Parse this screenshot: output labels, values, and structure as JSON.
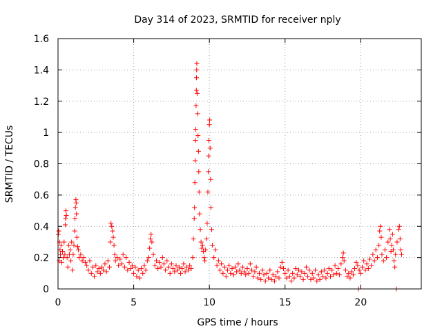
{
  "chart_data": {
    "type": "scatter",
    "title": "Day 314 of 2023, SRMTID for receiver nply",
    "xlabel": "GPS time / hours",
    "ylabel": "SRMTID / TECUs",
    "xlim": [
      0,
      24
    ],
    "ylim": [
      0,
      1.6
    ],
    "x_ticks": [
      0,
      5,
      10,
      15,
      20
    ],
    "x_tick_labels": [
      "0",
      "5",
      "10",
      "15",
      "20"
    ],
    "y_ticks": [
      0,
      0.2,
      0.4,
      0.6,
      0.8,
      1,
      1.2,
      1.4,
      1.6
    ],
    "y_tick_labels": [
      "0",
      "0.2",
      "0.4",
      "0.6",
      "0.8",
      "1",
      "1.2",
      "1.4",
      "1.6"
    ],
    "grid": true,
    "marker": "+",
    "colors": {
      "series": "#ff0000",
      "grid": "#a0a0a0",
      "axis": "#000000"
    },
    "series": [
      {
        "name": "SRMTID",
        "marker": "+",
        "points": [
          [
            0.02,
            0.35
          ],
          [
            0.05,
            0.37
          ],
          [
            0.08,
            0.18
          ],
          [
            0.1,
            0.3
          ],
          [
            0.13,
            0.25
          ],
          [
            0.16,
            0.22
          ],
          [
            0.2,
            0.28
          ],
          [
            0.25,
            0.17
          ],
          [
            0.3,
            0.24
          ],
          [
            0.35,
            0.2
          ],
          [
            0.4,
            0.3
          ],
          [
            0.45,
            0.22
          ],
          [
            0.48,
            0.41
          ],
          [
            0.5,
            0.45
          ],
          [
            0.52,
            0.5
          ],
          [
            0.55,
            0.47
          ],
          [
            0.6,
            0.2
          ],
          [
            0.65,
            0.14
          ],
          [
            0.7,
            0.28
          ],
          [
            0.75,
            0.22
          ],
          [
            0.8,
            0.25
          ],
          [
            0.85,
            0.18
          ],
          [
            0.9,
            0.3
          ],
          [
            0.95,
            0.12
          ],
          [
            1.0,
            0.22
          ],
          [
            1.05,
            0.28
          ],
          [
            1.1,
            0.37
          ],
          [
            1.12,
            0.45
          ],
          [
            1.15,
            0.52
          ],
          [
            1.18,
            0.57
          ],
          [
            1.2,
            0.55
          ],
          [
            1.22,
            0.48
          ],
          [
            1.25,
            0.33
          ],
          [
            1.3,
            0.27
          ],
          [
            1.35,
            0.25
          ],
          [
            1.4,
            0.2
          ],
          [
            1.5,
            0.22
          ],
          [
            1.6,
            0.18
          ],
          [
            1.7,
            0.2
          ],
          [
            1.8,
            0.17
          ],
          [
            1.9,
            0.15
          ],
          [
            2.0,
            0.12
          ],
          [
            2.1,
            0.18
          ],
          [
            2.2,
            0.1
          ],
          [
            2.3,
            0.14
          ],
          [
            2.4,
            0.08
          ],
          [
            2.5,
            0.15
          ],
          [
            2.6,
            0.11
          ],
          [
            2.7,
            0.13
          ],
          [
            2.8,
            0.1
          ],
          [
            2.9,
            0.14
          ],
          [
            3.0,
            0.12
          ],
          [
            3.1,
            0.16
          ],
          [
            3.2,
            0.11
          ],
          [
            3.3,
            0.18
          ],
          [
            3.4,
            0.14
          ],
          [
            3.45,
            0.3
          ],
          [
            3.5,
            0.42
          ],
          [
            3.55,
            0.4
          ],
          [
            3.6,
            0.37
          ],
          [
            3.65,
            0.33
          ],
          [
            3.7,
            0.28
          ],
          [
            3.75,
            0.22
          ],
          [
            3.8,
            0.18
          ],
          [
            3.9,
            0.2
          ],
          [
            4.0,
            0.15
          ],
          [
            4.1,
            0.19
          ],
          [
            4.2,
            0.16
          ],
          [
            4.3,
            0.22
          ],
          [
            4.4,
            0.14
          ],
          [
            4.5,
            0.2
          ],
          [
            4.6,
            0.12
          ],
          [
            4.7,
            0.17
          ],
          [
            4.8,
            0.13
          ],
          [
            4.9,
            0.15
          ],
          [
            5.0,
            0.1
          ],
          [
            5.1,
            0.14
          ],
          [
            5.2,
            0.08
          ],
          [
            5.3,
            0.12
          ],
          [
            5.4,
            0.07
          ],
          [
            5.5,
            0.13
          ],
          [
            5.6,
            0.1
          ],
          [
            5.7,
            0.15
          ],
          [
            5.8,
            0.12
          ],
          [
            5.9,
            0.18
          ],
          [
            6.0,
            0.2
          ],
          [
            6.05,
            0.26
          ],
          [
            6.1,
            0.32
          ],
          [
            6.15,
            0.35
          ],
          [
            6.2,
            0.3
          ],
          [
            6.3,
            0.22
          ],
          [
            6.4,
            0.15
          ],
          [
            6.5,
            0.18
          ],
          [
            6.6,
            0.13
          ],
          [
            6.7,
            0.17
          ],
          [
            6.8,
            0.14
          ],
          [
            6.9,
            0.2
          ],
          [
            7.0,
            0.16
          ],
          [
            7.1,
            0.12
          ],
          [
            7.2,
            0.18
          ],
          [
            7.3,
            0.14
          ],
          [
            7.4,
            0.1
          ],
          [
            7.5,
            0.16
          ],
          [
            7.6,
            0.13
          ],
          [
            7.7,
            0.11
          ],
          [
            7.8,
            0.15
          ],
          [
            7.9,
            0.12
          ],
          [
            8.0,
            0.14
          ],
          [
            8.1,
            0.1
          ],
          [
            8.2,
            0.13
          ],
          [
            8.3,
            0.16
          ],
          [
            8.4,
            0.11
          ],
          [
            8.5,
            0.14
          ],
          [
            8.6,
            0.12
          ],
          [
            8.7,
            0.15
          ],
          [
            8.8,
            0.13
          ],
          [
            8.9,
            0.2
          ],
          [
            8.95,
            0.32
          ],
          [
            9.0,
            0.45
          ],
          [
            9.02,
            0.52
          ],
          [
            9.04,
            0.68
          ],
          [
            9.06,
            0.82
          ],
          [
            9.08,
            0.95
          ],
          [
            9.1,
            1.02
          ],
          [
            9.12,
            1.17
          ],
          [
            9.14,
            1.27
          ],
          [
            9.15,
            1.35
          ],
          [
            9.16,
            1.4
          ],
          [
            9.17,
            1.44
          ],
          [
            9.2,
            1.25
          ],
          [
            9.22,
            1.12
          ],
          [
            9.25,
            0.98
          ],
          [
            9.28,
            0.88
          ],
          [
            9.3,
            0.75
          ],
          [
            9.32,
            0.62
          ],
          [
            9.35,
            0.48
          ],
          [
            9.4,
            0.38
          ],
          [
            9.45,
            0.3
          ],
          [
            9.5,
            0.26
          ],
          [
            9.55,
            0.28
          ],
          [
            9.6,
            0.24
          ],
          [
            9.65,
            0.2
          ],
          [
            9.7,
            0.18
          ],
          [
            9.75,
            0.25
          ],
          [
            9.8,
            0.32
          ],
          [
            9.85,
            0.42
          ],
          [
            9.9,
            0.62
          ],
          [
            9.93,
            0.75
          ],
          [
            9.95,
            0.85
          ],
          [
            9.97,
            0.95
          ],
          [
            10.0,
            1.05
          ],
          [
            10.02,
            1.08
          ],
          [
            10.05,
            0.9
          ],
          [
            10.08,
            0.7
          ],
          [
            10.1,
            0.52
          ],
          [
            10.15,
            0.38
          ],
          [
            10.2,
            0.28
          ],
          [
            10.3,
            0.2
          ],
          [
            10.4,
            0.25
          ],
          [
            10.5,
            0.15
          ],
          [
            10.6,
            0.18
          ],
          [
            10.7,
            0.12
          ],
          [
            10.8,
            0.16
          ],
          [
            10.9,
            0.1
          ],
          [
            11.0,
            0.14
          ],
          [
            11.1,
            0.08
          ],
          [
            11.2,
            0.12
          ],
          [
            11.3,
            0.15
          ],
          [
            11.4,
            0.1
          ],
          [
            11.5,
            0.13
          ],
          [
            11.6,
            0.09
          ],
          [
            11.7,
            0.14
          ],
          [
            11.8,
            0.11
          ],
          [
            11.9,
            0.16
          ],
          [
            12.0,
            0.12
          ],
          [
            12.1,
            0.1
          ],
          [
            12.2,
            0.14
          ],
          [
            12.3,
            0.11
          ],
          [
            12.4,
            0.09
          ],
          [
            12.5,
            0.13
          ],
          [
            12.6,
            0.1
          ],
          [
            12.7,
            0.16
          ],
          [
            12.8,
            0.12
          ],
          [
            12.9,
            0.08
          ],
          [
            13.0,
            0.11
          ],
          [
            13.1,
            0.14
          ],
          [
            13.2,
            0.07
          ],
          [
            13.3,
            0.1
          ],
          [
            13.4,
            0.06
          ],
          [
            13.5,
            0.12
          ],
          [
            13.6,
            0.09
          ],
          [
            13.7,
            0.05
          ],
          [
            13.8,
            0.1
          ],
          [
            13.9,
            0.07
          ],
          [
            14.0,
            0.12
          ],
          [
            14.1,
            0.06
          ],
          [
            14.2,
            0.09
          ],
          [
            14.3,
            0.05
          ],
          [
            14.4,
            0.08
          ],
          [
            14.5,
            0.11
          ],
          [
            14.6,
            0.07
          ],
          [
            14.7,
            0.14
          ],
          [
            14.8,
            0.17
          ],
          [
            14.9,
            0.13
          ],
          [
            15.0,
            0.1
          ],
          [
            15.1,
            0.07
          ],
          [
            15.2,
            0.12
          ],
          [
            15.3,
            0.08
          ],
          [
            15.4,
            0.05
          ],
          [
            15.5,
            0.1
          ],
          [
            15.6,
            0.07
          ],
          [
            15.7,
            0.13
          ],
          [
            15.8,
            0.09
          ],
          [
            15.9,
            0.12
          ],
          [
            16.0,
            0.08
          ],
          [
            16.1,
            0.11
          ],
          [
            16.2,
            0.06
          ],
          [
            16.3,
            0.1
          ],
          [
            16.4,
            0.14
          ],
          [
            16.5,
            0.08
          ],
          [
            16.6,
            0.12
          ],
          [
            16.7,
            0.06
          ],
          [
            16.8,
            0.1
          ],
          [
            16.9,
            0.07
          ],
          [
            17.0,
            0.12
          ],
          [
            17.1,
            0.05
          ],
          [
            17.2,
            0.09
          ],
          [
            17.3,
            0.06
          ],
          [
            17.4,
            0.11
          ],
          [
            17.5,
            0.08
          ],
          [
            17.6,
            0.12
          ],
          [
            17.7,
            0.07
          ],
          [
            17.8,
            0.1
          ],
          [
            17.9,
            0.13
          ],
          [
            18.0,
            0.08
          ],
          [
            18.1,
            0.12
          ],
          [
            18.2,
            0.09
          ],
          [
            18.3,
            0.15
          ],
          [
            18.4,
            0.1
          ],
          [
            18.5,
            0.13
          ],
          [
            18.6,
            0.09
          ],
          [
            18.7,
            0.16
          ],
          [
            18.8,
            0.2
          ],
          [
            18.85,
            0.23
          ],
          [
            18.9,
            0.18
          ],
          [
            19.0,
            0.12
          ],
          [
            19.1,
            0.08
          ],
          [
            19.2,
            0.1
          ],
          [
            19.3,
            0.07
          ],
          [
            19.4,
            0.11
          ],
          [
            19.5,
            0.09
          ],
          [
            19.6,
            0.13
          ],
          [
            19.7,
            0.17
          ],
          [
            19.8,
            0.15
          ],
          [
            19.85,
            0.0
          ],
          [
            19.9,
            0.12
          ],
          [
            20.0,
            0.1
          ],
          [
            20.1,
            0.14
          ],
          [
            20.2,
            0.18
          ],
          [
            20.3,
            0.12
          ],
          [
            20.4,
            0.16
          ],
          [
            20.5,
            0.13
          ],
          [
            20.6,
            0.19
          ],
          [
            20.7,
            0.15
          ],
          [
            20.8,
            0.22
          ],
          [
            20.9,
            0.18
          ],
          [
            21.0,
            0.25
          ],
          [
            21.1,
            0.2
          ],
          [
            21.2,
            0.28
          ],
          [
            21.25,
            0.37
          ],
          [
            21.3,
            0.4
          ],
          [
            21.35,
            0.33
          ],
          [
            21.4,
            0.22
          ],
          [
            21.5,
            0.18
          ],
          [
            21.6,
            0.25
          ],
          [
            21.7,
            0.2
          ],
          [
            21.8,
            0.3
          ],
          [
            21.9,
            0.38
          ],
          [
            21.95,
            0.32
          ],
          [
            22.0,
            0.24
          ],
          [
            22.05,
            0.28
          ],
          [
            22.1,
            0.35
          ],
          [
            22.15,
            0.25
          ],
          [
            22.2,
            0.18
          ],
          [
            22.25,
            0.14
          ],
          [
            22.3,
            0.22
          ],
          [
            22.35,
            0.0
          ],
          [
            22.4,
            0.3
          ],
          [
            22.5,
            0.38
          ],
          [
            22.55,
            0.4
          ],
          [
            22.6,
            0.32
          ],
          [
            22.65,
            0.25
          ],
          [
            22.7,
            0.22
          ]
        ]
      }
    ]
  }
}
